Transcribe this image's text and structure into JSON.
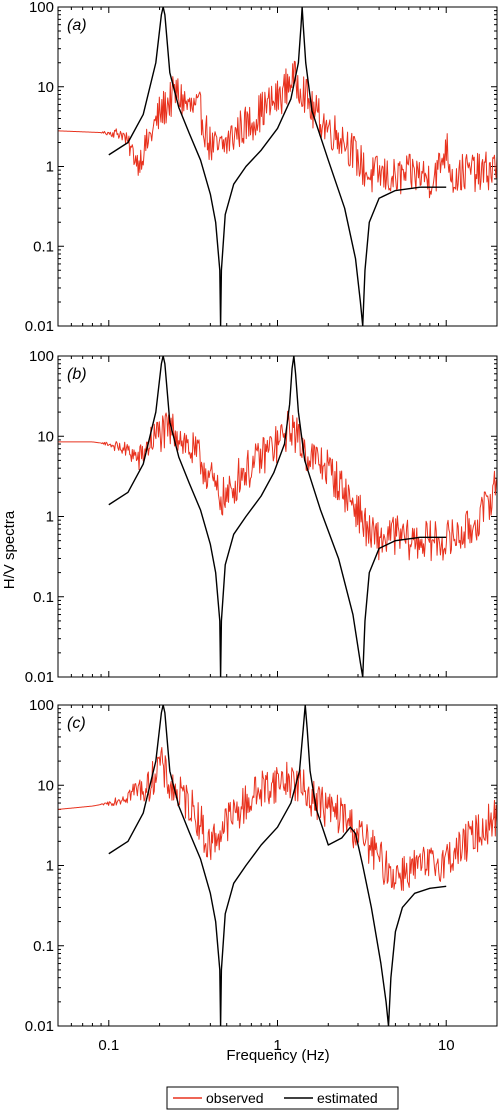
{
  "figure": {
    "ylabel": "H/V spectra",
    "xlabel": "Frequency (Hz)",
    "legend": {
      "position": "bottom-center",
      "items": [
        {
          "label": "observed",
          "color": "#e8321e"
        },
        {
          "label": "estimated",
          "color": "#000000"
        }
      ]
    }
  },
  "chart_data": [
    {
      "type": "line",
      "panel_label": "(a)",
      "xscale": "log",
      "yscale": "log",
      "xlim": [
        0.05,
        20
      ],
      "ylim": [
        0.01,
        100
      ],
      "xticks": [
        0.1,
        1,
        10
      ],
      "xtick_labels": [
        "0.1",
        "1",
        "10"
      ],
      "yticks": [
        0.01,
        0.1,
        1,
        10,
        100
      ],
      "ytick_labels": [
        "0.01",
        "0.1",
        "1",
        "10",
        "100"
      ],
      "series": [
        {
          "name": "observed",
          "color": "#e8321e",
          "x": [
            0.05,
            0.12,
            0.15,
            0.2,
            0.25,
            0.3,
            0.35,
            0.4,
            0.45,
            0.5,
            0.6,
            0.7,
            0.8,
            0.9,
            1.0,
            1.1,
            1.2,
            1.4,
            1.6,
            1.8,
            2.0,
            2.5,
            3.0,
            3.5,
            4.0,
            5.0,
            6.0,
            7.0,
            8.0,
            9.0,
            10.0,
            11.0,
            12.0,
            14.0,
            16.0,
            20.0
          ],
          "y": [
            2.8,
            2.6,
            1.1,
            4.5,
            8.5,
            5.5,
            4.8,
            1.8,
            1.6,
            2.0,
            3.0,
            3.6,
            5.0,
            6.0,
            7.0,
            9.0,
            13.0,
            10.0,
            5.0,
            4.0,
            3.0,
            2.2,
            1.2,
            0.75,
            0.8,
            0.7,
            0.8,
            0.8,
            0.7,
            0.9,
            1.8,
            0.7,
            0.8,
            0.9,
            0.8,
            1.0
          ],
          "noise": 0.25
        },
        {
          "name": "estimated",
          "color": "#000000",
          "x": [
            0.1,
            0.13,
            0.16,
            0.19,
            0.205,
            0.21,
            0.215,
            0.23,
            0.26,
            0.3,
            0.35,
            0.4,
            0.43,
            0.455,
            0.46,
            0.465,
            0.49,
            0.55,
            0.65,
            0.8,
            1.0,
            1.2,
            1.33,
            1.38,
            1.4,
            1.42,
            1.47,
            1.6,
            2.0,
            2.5,
            2.9,
            3.1,
            3.2,
            3.3,
            3.5,
            4.0,
            5.0,
            7.0,
            10.0
          ],
          "y": [
            1.4,
            2.0,
            4.5,
            20,
            80,
            100,
            80,
            15,
            5.5,
            2.6,
            1.2,
            0.45,
            0.2,
            0.05,
            0.01,
            0.05,
            0.25,
            0.6,
            1.0,
            1.6,
            3.0,
            7.0,
            20,
            60,
            100,
            60,
            20,
            5.0,
            1.2,
            0.3,
            0.07,
            0.02,
            0.01,
            0.05,
            0.2,
            0.4,
            0.5,
            0.55,
            0.55
          ]
        }
      ]
    },
    {
      "type": "line",
      "panel_label": "(b)",
      "xscale": "log",
      "yscale": "log",
      "xlim": [
        0.05,
        20
      ],
      "ylim": [
        0.01,
        100
      ],
      "xticks": [
        0.1,
        1,
        10
      ],
      "xtick_labels": [
        "0.1",
        "1",
        "10"
      ],
      "yticks": [
        0.01,
        0.1,
        1,
        10,
        100
      ],
      "ytick_labels": [
        "0.01",
        "0.1",
        "1",
        "10",
        "100"
      ],
      "series": [
        {
          "name": "observed",
          "color": "#e8321e",
          "x": [
            0.05,
            0.08,
            0.1,
            0.12,
            0.14,
            0.15,
            0.18,
            0.2,
            0.22,
            0.25,
            0.3,
            0.35,
            0.4,
            0.45,
            0.5,
            0.55,
            0.6,
            0.7,
            0.8,
            0.9,
            1.0,
            1.1,
            1.2,
            1.3,
            1.5,
            2.0,
            2.5,
            3.0,
            3.5,
            4.0,
            5.0,
            6.0,
            8.0,
            10.0,
            12.0,
            14.0,
            17.0,
            20.0
          ],
          "y": [
            8.5,
            8.5,
            8.0,
            7.0,
            6.0,
            5.0,
            9.0,
            11,
            11,
            12,
            7.0,
            5.0,
            3.0,
            1.8,
            1.7,
            2.2,
            3.5,
            4.0,
            5.5,
            7.0,
            8.0,
            10.0,
            14.0,
            10.0,
            6.0,
            4.0,
            2.0,
            1.2,
            0.6,
            0.5,
            0.6,
            0.5,
            0.5,
            0.5,
            0.6,
            0.7,
            1.2,
            2.8
          ],
          "noise": 0.25
        },
        {
          "name": "estimated",
          "color": "#000000",
          "x": [
            0.1,
            0.13,
            0.16,
            0.19,
            0.205,
            0.21,
            0.215,
            0.23,
            0.26,
            0.3,
            0.35,
            0.4,
            0.43,
            0.455,
            0.46,
            0.465,
            0.49,
            0.55,
            0.65,
            0.8,
            0.95,
            1.1,
            1.18,
            1.22,
            1.25,
            1.28,
            1.33,
            1.45,
            1.8,
            2.3,
            2.8,
            3.1,
            3.2,
            3.3,
            3.5,
            4.0,
            5.0,
            7.0,
            10.0
          ],
          "y": [
            1.4,
            2.0,
            4.5,
            20,
            80,
            100,
            80,
            15,
            5.5,
            2.6,
            1.2,
            0.45,
            0.2,
            0.05,
            0.01,
            0.05,
            0.25,
            0.6,
            1.0,
            1.8,
            3.5,
            8.0,
            25,
            70,
            100,
            60,
            20,
            5.0,
            1.2,
            0.3,
            0.06,
            0.015,
            0.01,
            0.05,
            0.2,
            0.4,
            0.5,
            0.55,
            0.55
          ]
        }
      ]
    },
    {
      "type": "line",
      "panel_label": "(c)",
      "xscale": "log",
      "yscale": "log",
      "xlim": [
        0.05,
        20
      ],
      "ylim": [
        0.01,
        100
      ],
      "xticks": [
        0.1,
        1,
        10
      ],
      "xtick_labels": [
        "0.1",
        "1",
        "10"
      ],
      "yticks": [
        0.01,
        0.1,
        1,
        10,
        100
      ],
      "ytick_labels": [
        "0.01",
        "0.1",
        "1",
        "10",
        "100"
      ],
      "series": [
        {
          "name": "observed",
          "color": "#e8321e",
          "x": [
            0.05,
            0.08,
            0.1,
            0.12,
            0.15,
            0.17,
            0.19,
            0.2,
            0.22,
            0.25,
            0.3,
            0.35,
            0.38,
            0.4,
            0.45,
            0.5,
            0.6,
            0.7,
            0.8,
            0.9,
            1.0,
            1.2,
            1.5,
            2.0,
            2.5,
            3.0,
            3.5,
            4.0,
            4.5,
            5.0,
            6.0,
            8.0,
            10.0,
            12.0,
            15.0,
            20.0
          ],
          "y": [
            5.0,
            5.5,
            6.0,
            7.0,
            9.0,
            9.0,
            15,
            20,
            12,
            8.0,
            6.0,
            3.5,
            1.8,
            1.9,
            2.5,
            3.5,
            5.0,
            7.0,
            9.0,
            10.0,
            11.0,
            12.0,
            8.0,
            5.0,
            4.0,
            2.5,
            1.8,
            1.2,
            0.9,
            0.75,
            0.9,
            1.0,
            1.2,
            1.6,
            2.5,
            4.0
          ],
          "noise": 0.25
        },
        {
          "name": "estimated",
          "color": "#000000",
          "x": [
            0.1,
            0.13,
            0.16,
            0.19,
            0.205,
            0.21,
            0.215,
            0.23,
            0.26,
            0.3,
            0.35,
            0.4,
            0.43,
            0.455,
            0.46,
            0.465,
            0.49,
            0.55,
            0.65,
            0.8,
            1.0,
            1.2,
            1.35,
            1.42,
            1.46,
            1.5,
            1.56,
            1.7,
            2.0,
            2.4,
            2.7,
            2.9,
            3.2,
            3.6,
            4.1,
            4.4,
            4.55,
            4.7,
            5.0,
            5.5,
            6.5,
            8.0,
            10.0
          ],
          "y": [
            1.4,
            2.0,
            4.5,
            20,
            80,
            100,
            80,
            15,
            5.5,
            2.6,
            1.2,
            0.45,
            0.2,
            0.05,
            0.01,
            0.05,
            0.25,
            0.6,
            1.0,
            1.8,
            3.0,
            6.0,
            15,
            50,
            100,
            50,
            15,
            5.0,
            1.8,
            2.2,
            3.0,
            2.5,
            1.0,
            0.3,
            0.06,
            0.02,
            0.01,
            0.04,
            0.15,
            0.3,
            0.45,
            0.52,
            0.55
          ]
        }
      ]
    }
  ]
}
